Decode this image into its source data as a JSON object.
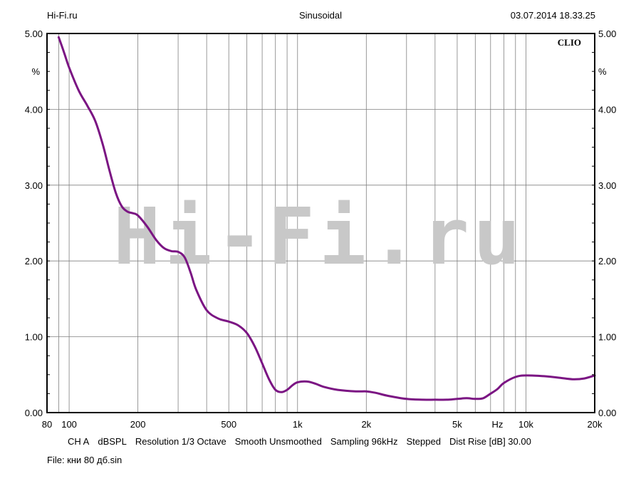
{
  "header": {
    "left": "Hi-Fi.ru",
    "center": "Sinusoidal",
    "right": "03.07.2014 18.33.25"
  },
  "brand": {
    "tag": "CLIO",
    "watermark": "Hi-Fi.ru"
  },
  "footer": {
    "settings": [
      "CH A",
      "dBSPL",
      "Resolution 1/3 Octave",
      "Smooth Unsmoothed",
      "Sampling 96kHz",
      "Stepped",
      "Dist Rise [dB] 30.00"
    ],
    "file": "File: кни 80 дб.sin"
  },
  "colors": {
    "curve": "#7b1583",
    "grid": "#808080",
    "watermark": "#c8c8c8"
  },
  "chart_data": {
    "type": "line",
    "x_scale": "log",
    "xlim": [
      80,
      20000
    ],
    "ylim": [
      0,
      5
    ],
    "yunit": "%",
    "xunit": "Hz",
    "grid": true,
    "y_ticks": [
      {
        "value": 0,
        "label": "0.00"
      },
      {
        "value": 1,
        "label": "1.00"
      },
      {
        "value": 2,
        "label": "2.00"
      },
      {
        "value": 3,
        "label": "3.00"
      },
      {
        "value": 4,
        "label": "4.00"
      },
      {
        "value": 5,
        "label": "5.00"
      }
    ],
    "x_ticks": [
      {
        "value": 80,
        "label": "80"
      },
      {
        "value": 100,
        "label": "100"
      },
      {
        "value": 200,
        "label": "200"
      },
      {
        "value": 500,
        "label": "500"
      },
      {
        "value": 1000,
        "label": "1k"
      },
      {
        "value": 2000,
        "label": "2k"
      },
      {
        "value": 5000,
        "label": "5k"
      },
      {
        "value": 7500,
        "label": "Hz"
      },
      {
        "value": 10000,
        "label": "10k"
      },
      {
        "value": 20000,
        "label": "20k"
      }
    ],
    "grid_x": [
      90,
      100,
      200,
      300,
      400,
      500,
      600,
      700,
      800,
      900,
      1000,
      2000,
      3000,
      4000,
      5000,
      6000,
      7000,
      8000,
      9000,
      10000,
      20000
    ],
    "series": [
      {
        "x": [
          90,
          95,
          100,
          110,
          120,
          130,
          140,
          150,
          160,
          170,
          180,
          190,
          200,
          220,
          240,
          260,
          280,
          300,
          320,
          340,
          360,
          400,
          450,
          500,
          550,
          600,
          650,
          700,
          750,
          800,
          850,
          900,
          950,
          1000,
          1100,
          1200,
          1300,
          1500,
          1800,
          2000,
          2200,
          2500,
          3000,
          3500,
          4000,
          4500,
          5000,
          5500,
          6000,
          6500,
          7000,
          7500,
          8000,
          9000,
          10000,
          12000,
          14000,
          16000,
          18000,
          20000
        ],
        "y": [
          4.95,
          4.75,
          4.55,
          4.25,
          4.05,
          3.85,
          3.55,
          3.2,
          2.9,
          2.72,
          2.65,
          2.63,
          2.6,
          2.45,
          2.28,
          2.17,
          2.13,
          2.12,
          2.05,
          1.85,
          1.62,
          1.35,
          1.24,
          1.2,
          1.15,
          1.05,
          0.87,
          0.65,
          0.44,
          0.3,
          0.27,
          0.3,
          0.36,
          0.4,
          0.41,
          0.38,
          0.34,
          0.3,
          0.28,
          0.28,
          0.26,
          0.22,
          0.18,
          0.17,
          0.17,
          0.17,
          0.18,
          0.19,
          0.18,
          0.19,
          0.25,
          0.31,
          0.39,
          0.47,
          0.49,
          0.48,
          0.46,
          0.44,
          0.45,
          0.49
        ]
      }
    ]
  }
}
